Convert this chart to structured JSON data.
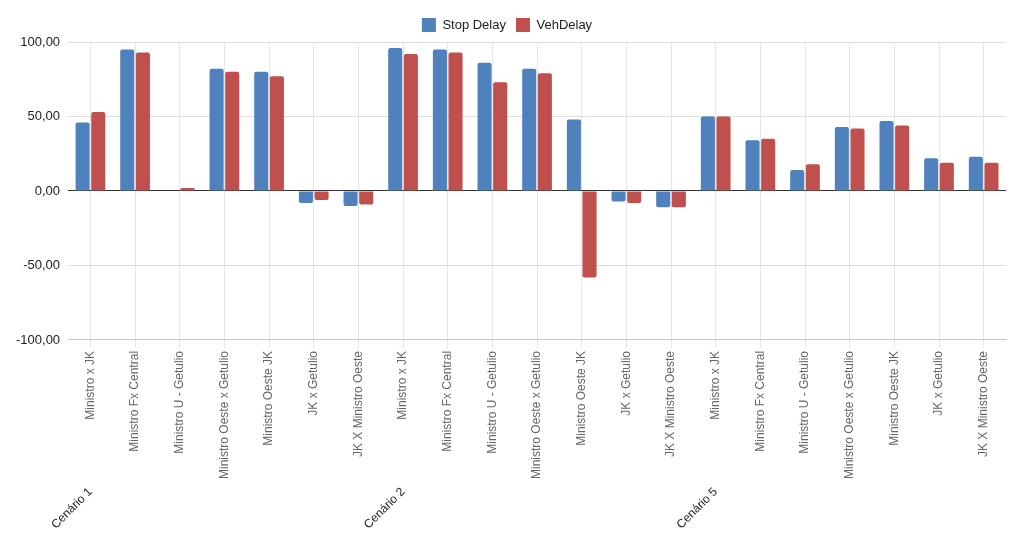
{
  "chart_data": {
    "type": "bar",
    "categories": [
      "Ministro x JK",
      "Ministro Fx Central",
      "Ministro U - Getulio",
      "Ministro Oeste x Getulio",
      "Ministro Oeste JK",
      "JK x Getulio",
      "JK X Ministro Oeste",
      "Ministro x JK",
      "Ministro Fx Central",
      "Ministro U - Getulio",
      "Ministro Oeste x Getulio",
      "Ministro Oeste JK",
      "JK x Getulio",
      "JK X Ministro Oeste",
      "Ministro x JK",
      "Ministro Fx Central",
      "Ministro U - Getulio",
      "Ministro Oeste x Getulio",
      "Ministro Oeste JK",
      "JK x Getulio",
      "JK X Ministro Oeste"
    ],
    "series": [
      {
        "name": "Stop Delay",
        "color": "#4f81bd",
        "values": [
          46,
          95,
          0,
          82,
          80,
          -8,
          -10,
          96,
          95,
          86,
          82,
          48,
          -7,
          -11,
          50,
          34,
          14,
          43,
          47,
          22,
          23
        ]
      },
      {
        "name": "VehDelay",
        "color": "#c0504d",
        "values": [
          53,
          93,
          2,
          80,
          77,
          -6,
          -9,
          92,
          93,
          73,
          79,
          -58,
          -8,
          -11,
          50,
          35,
          18,
          42,
          44,
          19,
          19
        ]
      }
    ],
    "ylim": [
      -100,
      100
    ],
    "yticks": [
      {
        "value": -100,
        "label": "-100,00"
      },
      {
        "value": -50,
        "label": "-50,00"
      },
      {
        "value": 0,
        "label": "0,00"
      },
      {
        "value": 50,
        "label": "50,00"
      },
      {
        "value": 100,
        "label": "100,00"
      }
    ],
    "annotations": [
      "Cenário 1",
      "Cenário 2",
      "Cenário 5"
    ],
    "grid": true,
    "legend": "top"
  }
}
